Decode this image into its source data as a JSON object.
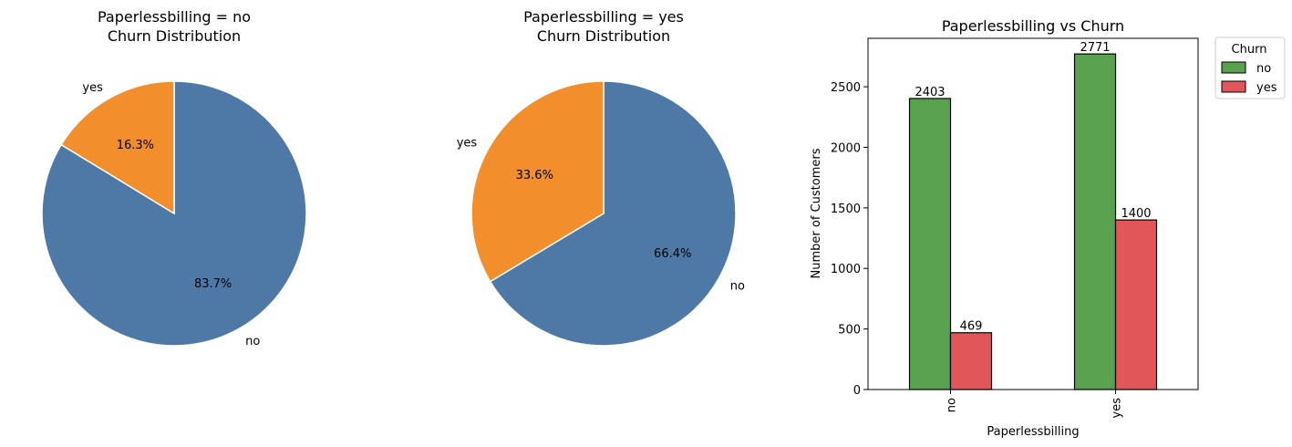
{
  "chart_data": [
    {
      "type": "pie",
      "title_line1": "Paperlessbilling = no",
      "title_line2": "Churn Distribution",
      "slices": [
        {
          "label": "no",
          "value": 83.7,
          "pct_label": "83.7%",
          "color": "#4e79a7"
        },
        {
          "label": "yes",
          "value": 16.3,
          "pct_label": "16.3%",
          "color": "#f28e2b"
        }
      ]
    },
    {
      "type": "pie",
      "title_line1": "Paperlessbilling = yes",
      "title_line2": "Churn Distribution",
      "slices": [
        {
          "label": "no",
          "value": 66.4,
          "pct_label": "66.4%",
          "color": "#4e79a7"
        },
        {
          "label": "yes",
          "value": 33.6,
          "pct_label": "33.6%",
          "color": "#f28e2b"
        }
      ]
    },
    {
      "type": "bar",
      "title": "Paperlessbilling vs Churn",
      "xlabel": "Paperlessbilling",
      "ylabel": "Number of Customers",
      "categories": [
        "no",
        "yes"
      ],
      "series": [
        {
          "name": "no",
          "values": [
            2403,
            2771
          ],
          "color": "#59a14f"
        },
        {
          "name": "yes",
          "values": [
            469,
            1400
          ],
          "color": "#e15759"
        }
      ],
      "ylim": [
        0,
        2900
      ],
      "yticks": [
        0,
        500,
        1000,
        1500,
        2000,
        2500
      ],
      "legend_title": "Churn",
      "legend_position": "outside-upper-right"
    }
  ]
}
